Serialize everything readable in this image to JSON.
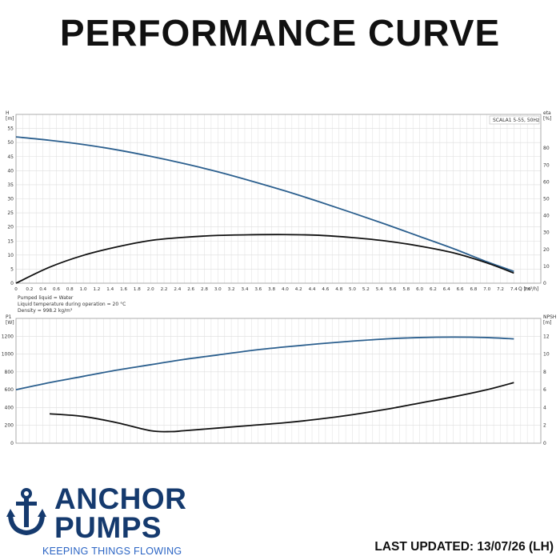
{
  "header": {
    "title": "PERFORMANCE CURVE"
  },
  "fluid": {
    "line1": "Pumped liquid = Water",
    "line2": "Liquid temperature during operation = 20 °C",
    "line3": "Density = 998.2 kg/m³"
  },
  "brand": {
    "line1": "ANCHOR",
    "line2": "PUMPS",
    "tagline": "KEEPING THINGS FLOWING",
    "anchor_icon": "anchor-icon",
    "color": "#153a6e",
    "tagline_color": "#2a64c4"
  },
  "footer": {
    "updated": "LAST UPDATED: 13/07/26 (LH)"
  },
  "chart_data": [
    {
      "type": "line",
      "legend": "SCALA1 5-55, 50Hz",
      "ylabel": "H\n[m]",
      "y2label": "eta\n[%]",
      "xlabel": "Q [m³/h]",
      "xlim": [
        0,
        7.8
      ],
      "x_ticks": [
        0,
        0.2,
        0.4,
        0.6,
        0.8,
        1.0,
        1.2,
        1.4,
        1.6,
        1.8,
        2.0,
        2.2,
        2.4,
        2.6,
        2.8,
        3.0,
        3.2,
        3.4,
        3.6,
        3.8,
        4.0,
        4.2,
        4.4,
        4.6,
        4.8,
        5.0,
        5.2,
        5.4,
        5.6,
        5.8,
        6.0,
        6.2,
        6.4,
        6.6,
        6.8,
        7.0,
        7.2,
        7.4,
        7.6
      ],
      "ylim": [
        0,
        60
      ],
      "y_ticks": [
        0,
        5,
        10,
        15,
        20,
        25,
        30,
        35,
        40,
        45,
        50,
        55
      ],
      "y2lim": [
        0,
        100
      ],
      "y2_ticks": [
        0,
        10,
        20,
        30,
        40,
        50,
        60,
        70,
        80
      ],
      "grid": true,
      "series": [
        {
          "axis": "left",
          "color": "#2b5f8e",
          "x": [
            0,
            0.5,
            1,
            1.5,
            2,
            2.5,
            3,
            3.5,
            4,
            4.5,
            5,
            5.5,
            6,
            6.5,
            7,
            7.4
          ],
          "y": [
            52,
            50.8,
            49.3,
            47.4,
            45.1,
            42.5,
            39.6,
            36.3,
            32.8,
            29,
            25,
            20.9,
            16.6,
            12.3,
            7.6,
            4.2
          ]
        },
        {
          "axis": "right",
          "color": "#111111",
          "x": [
            0,
            0.5,
            1,
            1.5,
            2,
            2.5,
            3,
            3.5,
            4,
            4.5,
            5,
            5.5,
            6,
            6.5,
            7,
            7.4
          ],
          "y": [
            0,
            9.5,
            16.5,
            21.5,
            25.3,
            27.2,
            28.3,
            28.7,
            28.8,
            28.4,
            27,
            25,
            22,
            18,
            12,
            6
          ]
        }
      ]
    },
    {
      "type": "line",
      "ylabel": "P1\n[W]",
      "y2label": "NPSH\n[m]",
      "xlim": [
        0,
        7.8
      ],
      "ylim": [
        0,
        1400
      ],
      "y_ticks": [
        0,
        200,
        400,
        600,
        800,
        1000,
        1200
      ],
      "y2lim": [
        0,
        14
      ],
      "y2_ticks": [
        0,
        2,
        4,
        6,
        8,
        10,
        12
      ],
      "grid": true,
      "series": [
        {
          "axis": "left",
          "color": "#2b5f8e",
          "x": [
            0,
            0.5,
            1,
            1.5,
            2,
            2.5,
            3,
            3.5,
            4,
            4.5,
            5,
            5.5,
            6,
            6.5,
            7,
            7.4
          ],
          "y": [
            600,
            680,
            750,
            820,
            880,
            940,
            990,
            1040,
            1080,
            1115,
            1145,
            1170,
            1185,
            1190,
            1185,
            1170
          ]
        },
        {
          "axis": "right",
          "color": "#111111",
          "x": [
            0.5,
            1,
            1.5,
            2,
            2.3,
            2.5,
            3,
            3.5,
            4,
            4.5,
            5,
            5.5,
            6,
            6.5,
            7,
            7.4
          ],
          "y": [
            3.3,
            3.0,
            2.3,
            1.4,
            1.3,
            1.4,
            1.7,
            2.0,
            2.3,
            2.7,
            3.2,
            3.8,
            4.5,
            5.2,
            6.0,
            6.8
          ]
        }
      ]
    }
  ]
}
